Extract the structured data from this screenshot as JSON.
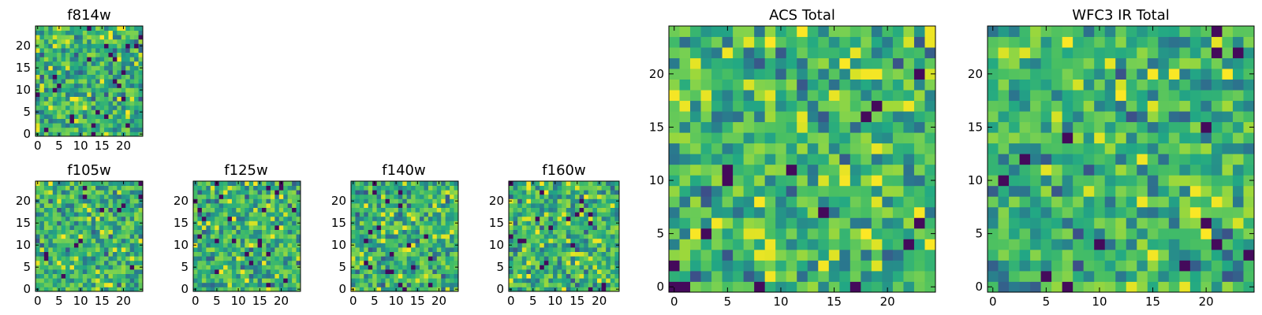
{
  "figure": {
    "description_type": "grid of heatmap image panels",
    "colormap": "viridis"
  },
  "chart_data": [
    {
      "type": "heatmap",
      "title": "f814w",
      "grid": [
        25,
        25
      ],
      "xticks": [
        "0",
        "5",
        "10",
        "15",
        "20"
      ],
      "yticks": [
        "0",
        "5",
        "10",
        "15",
        "20"
      ],
      "xlim": [
        0,
        25
      ],
      "ylim": [
        0,
        25
      ],
      "seed": 814
    },
    {
      "type": "heatmap",
      "title": "f105w",
      "grid": [
        25,
        25
      ],
      "xticks": [
        "0",
        "5",
        "10",
        "15",
        "20"
      ],
      "yticks": [
        "0",
        "5",
        "10",
        "15",
        "20"
      ],
      "xlim": [
        0,
        25
      ],
      "ylim": [
        0,
        25
      ],
      "seed": 105
    },
    {
      "type": "heatmap",
      "title": "f125w",
      "grid": [
        25,
        25
      ],
      "xticks": [
        "0",
        "5",
        "10",
        "15",
        "20"
      ],
      "yticks": [
        "0",
        "5",
        "10",
        "15",
        "20"
      ],
      "xlim": [
        0,
        25
      ],
      "ylim": [
        0,
        25
      ],
      "seed": 125
    },
    {
      "type": "heatmap",
      "title": "f140w",
      "grid": [
        25,
        25
      ],
      "xticks": [
        "0",
        "5",
        "10",
        "15",
        "20"
      ],
      "yticks": [
        "0",
        "5",
        "10",
        "15",
        "20"
      ],
      "xlim": [
        0,
        25
      ],
      "ylim": [
        0,
        25
      ],
      "seed": 140
    },
    {
      "type": "heatmap",
      "title": "f160w",
      "grid": [
        25,
        25
      ],
      "xticks": [
        "0",
        "5",
        "10",
        "15",
        "20"
      ],
      "yticks": [
        "0",
        "5",
        "10",
        "15",
        "20"
      ],
      "xlim": [
        0,
        25
      ],
      "ylim": [
        0,
        25
      ],
      "seed": 160
    },
    {
      "type": "heatmap",
      "title": "ACS Total",
      "grid": [
        25,
        25
      ],
      "xticks": [
        "0",
        "5",
        "10",
        "15",
        "20"
      ],
      "yticks": [
        "0",
        "5",
        "10",
        "15",
        "20"
      ],
      "xlim": [
        0,
        25
      ],
      "ylim": [
        0,
        25
      ],
      "seed": 901
    },
    {
      "type": "heatmap",
      "title": "WFC3 IR Total",
      "grid": [
        25,
        25
      ],
      "xticks": [
        "0",
        "5",
        "10",
        "15",
        "20"
      ],
      "yticks": [
        "0",
        "5",
        "10",
        "15",
        "20"
      ],
      "xlim": [
        0,
        25
      ],
      "ylim": [
        0,
        25
      ],
      "seed": 902
    }
  ]
}
